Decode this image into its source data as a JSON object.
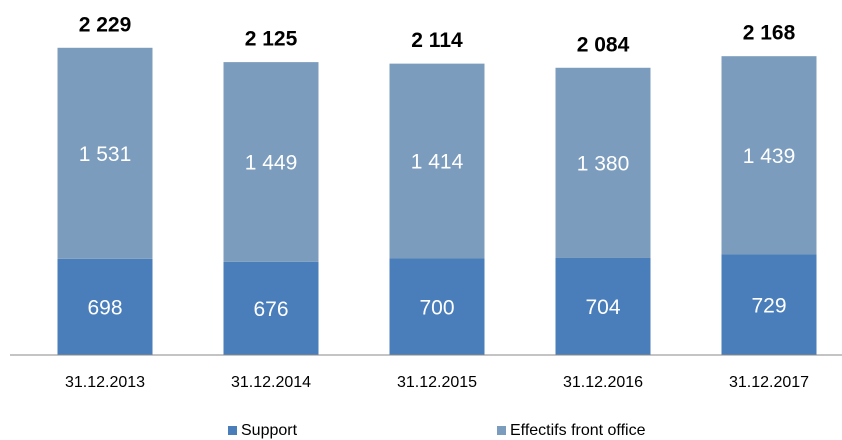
{
  "chart_data": {
    "type": "stacked_bar",
    "categories": [
      "31.12.2013",
      "31.12.2014",
      "31.12.2015",
      "31.12.2016",
      "31.12.2017"
    ],
    "series": [
      {
        "name": "Support",
        "color": "#4a7ebb",
        "values": [
          698,
          676,
          700,
          704,
          729
        ]
      },
      {
        "name": "Effectifs front office",
        "color": "#7b9cbd",
        "values": [
          1531,
          1449,
          1414,
          1380,
          1439
        ],
        "value_labels": [
          "1 531",
          "1 449",
          "1 414",
          "1 380",
          "1 439"
        ]
      }
    ],
    "total_labels": [
      "2 229",
      "2 125",
      "2 114",
      "2 084",
      "2 168"
    ],
    "ylim": [
      0,
      2300
    ],
    "legend": "bottom"
  }
}
